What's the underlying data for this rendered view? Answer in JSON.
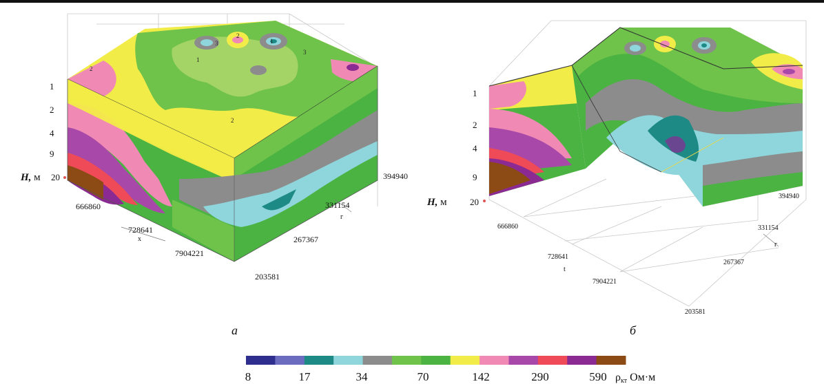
{
  "panel_a": {
    "label": "а",
    "depth_axis_label": "H,",
    "depth_axis_unit": "м",
    "depth_ticks": [
      "1",
      "2",
      "4",
      "9",
      "20"
    ],
    "x_ticks": [
      "666860",
      "728641",
      "7904221"
    ],
    "y_ticks": [
      "394940",
      "331154",
      "267367",
      "203581"
    ],
    "x_small": "x",
    "y_small": "г",
    "contour_labels": [
      "2",
      "1",
      "3",
      "2",
      "1",
      "3",
      "2"
    ]
  },
  "panel_b": {
    "label": "б",
    "depth_axis_label": "H,",
    "depth_axis_unit": "м",
    "depth_ticks": [
      "1",
      "2",
      "4",
      "9",
      "20"
    ],
    "x_ticks": [
      "666860",
      "728641",
      "7904221"
    ],
    "y_ticks": [
      "394940",
      "331154",
      "267367",
      "203581"
    ],
    "x_small": "t",
    "y_small": "г"
  },
  "colorbar": {
    "colors": [
      "#2e2e8e",
      "#6b6bc0",
      "#1e8a85",
      "#8fd5dc",
      "#8c8c8c",
      "#6fc24a",
      "#4bb342",
      "#f2ec48",
      "#f08ab5",
      "#a848a8",
      "#ee4a58",
      "#8c2a94",
      "#8c4a14"
    ],
    "ticks": [
      "8",
      "17",
      "34",
      "70",
      "142",
      "290",
      "590"
    ],
    "unit_symbol": "ρ",
    "unit_sub": "кт",
    "unit_text": "Ом·м"
  }
}
